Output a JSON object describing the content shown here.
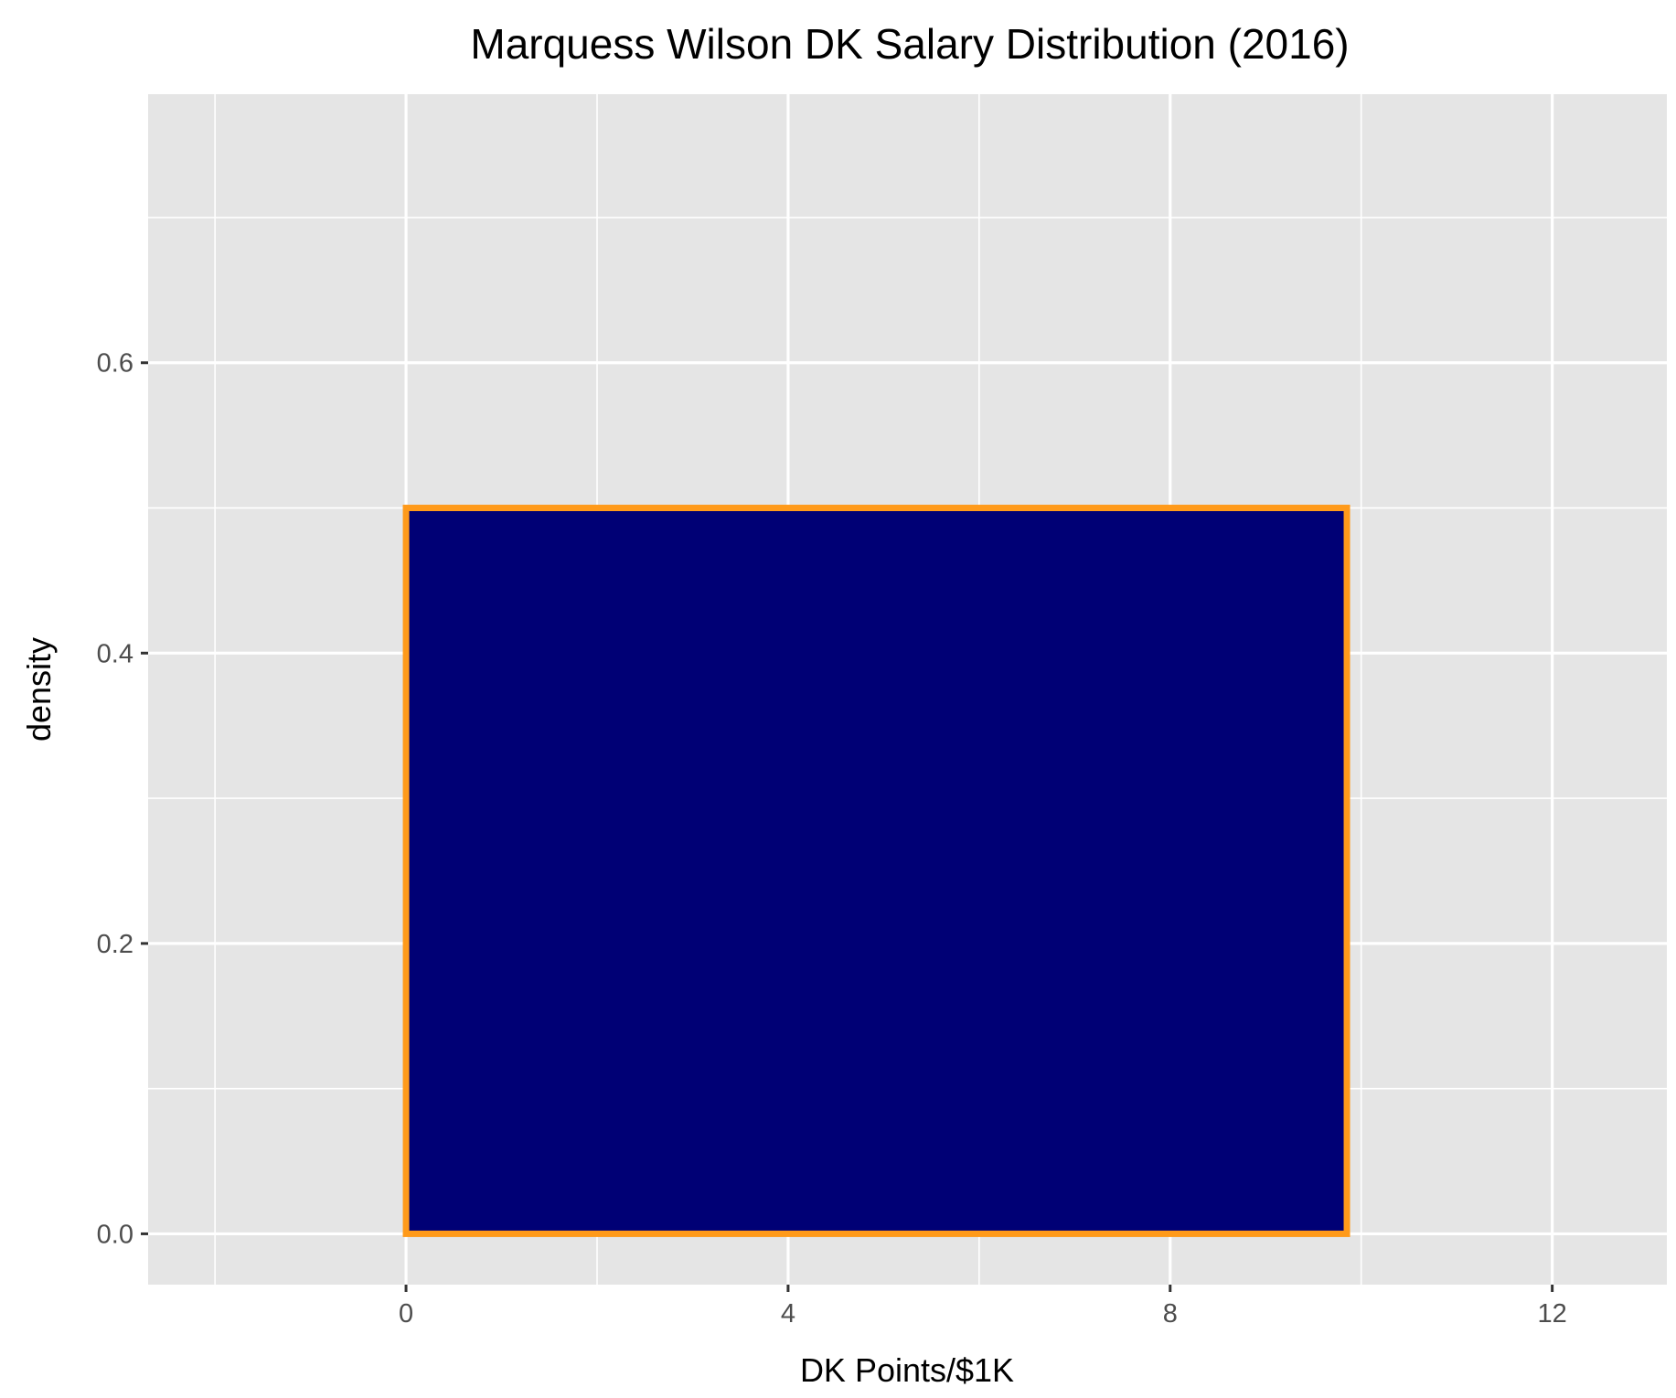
{
  "chart_data": {
    "type": "bar",
    "title": "Marquess Wilson DK Salary Distribution (2016)",
    "xlabel": "DK Points/$1K",
    "ylabel": "density",
    "xlim": [
      -2.7,
      13.2
    ],
    "ylim": [
      -0.035,
      0.785
    ],
    "x_ticks": [
      0,
      4,
      8,
      12
    ],
    "x_tick_labels": [
      "0",
      "4",
      "8",
      "12"
    ],
    "x_minor_ticks": [
      -2,
      2,
      6,
      10
    ],
    "y_ticks": [
      0.0,
      0.2,
      0.4,
      0.6
    ],
    "y_tick_labels": [
      "0.0",
      "0.2",
      "0.4",
      "0.6"
    ],
    "y_minor_ticks": [
      0.1,
      0.3,
      0.5,
      0.7
    ],
    "grid": true,
    "bins": [
      {
        "x_start": 0.0,
        "x_end": 9.85,
        "density": 0.5
      }
    ],
    "colors": {
      "fill": "#000075",
      "outline": "#ff9a1a",
      "panel": "#e5e5e5",
      "grid": "#ffffff"
    }
  }
}
